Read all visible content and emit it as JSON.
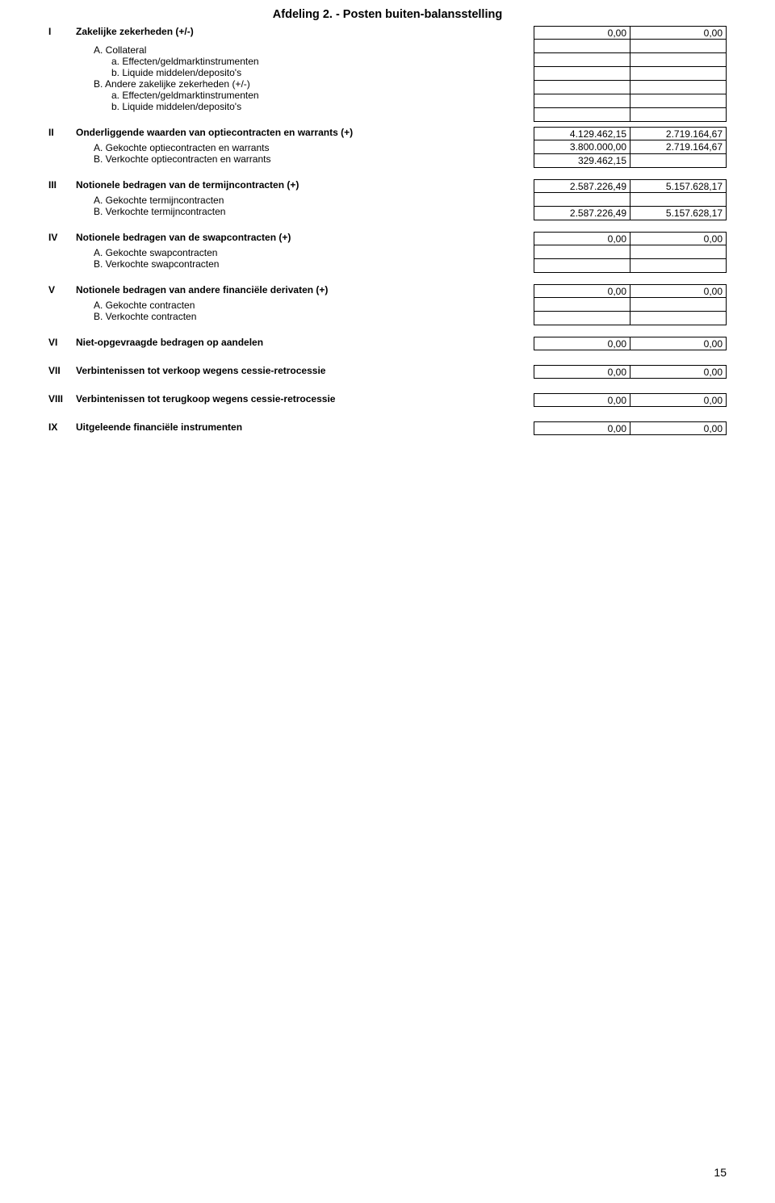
{
  "title": "Afdeling 2. - Posten buiten-balansstelling",
  "pageNumber": "15",
  "sections": {
    "I": {
      "num": "I",
      "head": "Zakelijke zekerheden (+/-)",
      "totals": [
        "0,00",
        "0,00"
      ],
      "A": "A.  Collateral",
      "Aa": "a.   Effecten/geldmarktinstrumenten",
      "Ab": "b.   Liquide middelen/deposito's",
      "B": "B.  Andere zakelijke zekerheden (+/-)",
      "Ba": "a.   Effecten/geldmarktinstrumenten",
      "Bb": "b.   Liquide middelen/deposito's"
    },
    "II": {
      "num": "II",
      "head": "Onderliggende waarden van optiecontracten en warrants (+)",
      "totals": [
        "4.129.462,15",
        "2.719.164,67"
      ],
      "A": "A.  Gekochte optiecontracten en warrants",
      "Avals": [
        "3.800.000,00",
        "2.719.164,67"
      ],
      "B": "B.  Verkochte optiecontracten en warrants",
      "Bvals": [
        "329.462,15",
        ""
      ]
    },
    "III": {
      "num": "III",
      "head": "Notionele bedragen van de termijncontracten (+)",
      "totals": [
        "2.587.226,49",
        "5.157.628,17"
      ],
      "A": "A.  Gekochte termijncontracten",
      "Avals": [
        "",
        ""
      ],
      "B": "B.  Verkochte termijncontracten",
      "Bvals": [
        "2.587.226,49",
        "5.157.628,17"
      ]
    },
    "IV": {
      "num": "IV",
      "head": "Notionele bedragen van de swapcontracten (+)",
      "totals": [
        "0,00",
        "0,00"
      ],
      "A": "A.  Gekochte swapcontracten",
      "Avals": [
        "",
        ""
      ],
      "B": "B.  Verkochte swapcontracten",
      "Bvals": [
        "",
        ""
      ]
    },
    "V": {
      "num": "V",
      "head": "Notionele bedragen van andere financiële derivaten (+)",
      "totals": [
        "0,00",
        "0,00"
      ],
      "A": "A.  Gekochte contracten",
      "Avals": [
        "",
        ""
      ],
      "B": "B.  Verkochte contracten",
      "Bvals": [
        "",
        ""
      ]
    },
    "VI": {
      "num": "VI",
      "head": "Niet-opgevraagde bedragen op aandelen",
      "totals": [
        "0,00",
        "0,00"
      ]
    },
    "VII": {
      "num": "VII",
      "head": "Verbintenissen tot verkoop wegens cessie-retrocessie",
      "totals": [
        "0,00",
        "0,00"
      ]
    },
    "VIII": {
      "num": "VIII",
      "head": "Verbintenissen tot terugkoop wegens cessie-retrocessie",
      "totals": [
        "0,00",
        "0,00"
      ]
    },
    "IX": {
      "num": "IX",
      "head": "Uitgeleende financiële instrumenten",
      "totals": [
        "0,00",
        "0,00"
      ]
    }
  }
}
